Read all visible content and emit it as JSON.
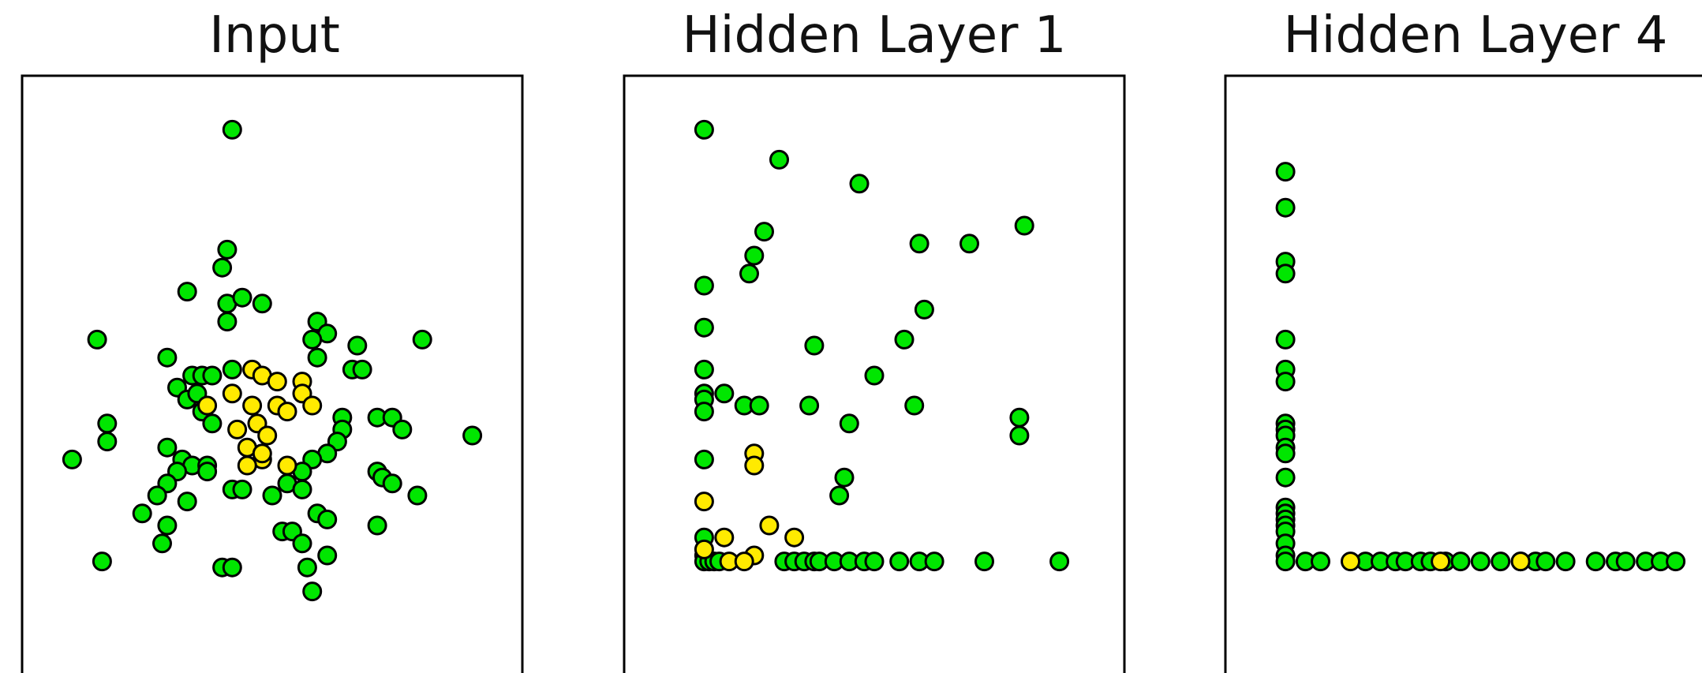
{
  "colors": {
    "class_a": "#00e600",
    "class_b": "#ffea00",
    "outline": "#000000"
  },
  "chart_data": [
    {
      "type": "scatter",
      "title": "Input",
      "xlabel": "",
      "ylabel": "",
      "xlim": [
        0,
        100
      ],
      "ylim": [
        0,
        100
      ],
      "grid": false,
      "series": [
        {
          "color": "#00e600",
          "points": [
            [
              42,
              91
            ],
            [
              41,
              71
            ],
            [
              40,
              68
            ],
            [
              33,
              64
            ],
            [
              41,
              62
            ],
            [
              44,
              63
            ],
            [
              48,
              62
            ],
            [
              41,
              59
            ],
            [
              15,
              56
            ],
            [
              29,
              53
            ],
            [
              59,
              59
            ],
            [
              61,
              57
            ],
            [
              58,
              56
            ],
            [
              59,
              53
            ],
            [
              67,
              55
            ],
            [
              66,
              51
            ],
            [
              68,
              51
            ],
            [
              80,
              56
            ],
            [
              34,
              50
            ],
            [
              36,
              50
            ],
            [
              38,
              50
            ],
            [
              42,
              51
            ],
            [
              31,
              48
            ],
            [
              33,
              46
            ],
            [
              36,
              44
            ],
            [
              38,
              42
            ],
            [
              35,
              47
            ],
            [
              17,
              42
            ],
            [
              17,
              39
            ],
            [
              29,
              38
            ],
            [
              64,
              43
            ],
            [
              64,
              41
            ],
            [
              63,
              39
            ],
            [
              61,
              37
            ],
            [
              58,
              36
            ],
            [
              56,
              34
            ],
            [
              71,
              43
            ],
            [
              74,
              43
            ],
            [
              76,
              41
            ],
            [
              10,
              36
            ],
            [
              32,
              36
            ],
            [
              34,
              35
            ],
            [
              37,
              35
            ],
            [
              37,
              34
            ],
            [
              31,
              34
            ],
            [
              29,
              32
            ],
            [
              27,
              30
            ],
            [
              24,
              27
            ],
            [
              33,
              29
            ],
            [
              29,
              25
            ],
            [
              28,
              22
            ],
            [
              42,
              31
            ],
            [
              44,
              31
            ],
            [
              50,
              30
            ],
            [
              53,
              32
            ],
            [
              56,
              31
            ],
            [
              59,
              27
            ],
            [
              52,
              24
            ],
            [
              54,
              24
            ],
            [
              56,
              22
            ],
            [
              61,
              26
            ],
            [
              71,
              34
            ],
            [
              72,
              33
            ],
            [
              74,
              32
            ],
            [
              79,
              30
            ],
            [
              71,
              25
            ],
            [
              61,
              20
            ],
            [
              16,
              19
            ],
            [
              40,
              18
            ],
            [
              42,
              18
            ],
            [
              57,
              18
            ],
            [
              58,
              14
            ],
            [
              90,
              40
            ]
          ]
        },
        {
          "color": "#ffea00",
          "points": [
            [
              46,
              51
            ],
            [
              48,
              50
            ],
            [
              51,
              49
            ],
            [
              56,
              49
            ],
            [
              56,
              47
            ],
            [
              42,
              47
            ],
            [
              46,
              45
            ],
            [
              51,
              45
            ],
            [
              53,
              44
            ],
            [
              58,
              45
            ],
            [
              37,
              45
            ],
            [
              47,
              42
            ],
            [
              49,
              40
            ],
            [
              43,
              41
            ],
            [
              45,
              38
            ],
            [
              48,
              36
            ],
            [
              45,
              35
            ],
            [
              53,
              35
            ],
            [
              48,
              37
            ]
          ]
        }
      ]
    },
    {
      "type": "scatter",
      "title": "Hidden Layer 1",
      "xlabel": "",
      "ylabel": "",
      "xlim": [
        0,
        100
      ],
      "ylim": [
        0,
        100
      ],
      "grid": false,
      "series": [
        {
          "color": "#00e600",
          "points": [
            [
              16,
              91
            ],
            [
              31,
              86
            ],
            [
              47,
              82
            ],
            [
              80,
              75
            ],
            [
              28,
              74
            ],
            [
              26,
              70
            ],
            [
              59,
              72
            ],
            [
              69,
              72
            ],
            [
              25,
              67
            ],
            [
              16,
              65
            ],
            [
              16,
              58
            ],
            [
              60,
              61
            ],
            [
              16,
              51
            ],
            [
              38,
              55
            ],
            [
              56,
              56
            ],
            [
              50,
              50
            ],
            [
              16,
              47
            ],
            [
              16,
              46
            ],
            [
              16,
              44
            ],
            [
              20,
              47
            ],
            [
              24,
              45
            ],
            [
              27,
              45
            ],
            [
              37,
              45
            ],
            [
              45,
              42
            ],
            [
              58,
              45
            ],
            [
              79,
              43
            ],
            [
              79,
              40
            ],
            [
              16,
              36
            ],
            [
              44,
              33
            ],
            [
              43,
              30
            ],
            [
              16,
              23
            ],
            [
              16,
              20
            ],
            [
              16,
              19
            ],
            [
              17,
              19
            ],
            [
              18,
              19
            ],
            [
              19,
              19
            ],
            [
              32,
              19
            ],
            [
              34,
              19
            ],
            [
              36,
              19
            ],
            [
              38,
              19
            ],
            [
              39,
              19
            ],
            [
              42,
              19
            ],
            [
              45,
              19
            ],
            [
              48,
              19
            ],
            [
              50,
              19
            ],
            [
              55,
              19
            ],
            [
              59,
              19
            ],
            [
              62,
              19
            ],
            [
              72,
              19
            ],
            [
              87,
              19
            ]
          ]
        },
        {
          "color": "#ffea00",
          "points": [
            [
              26,
              37
            ],
            [
              26,
              35
            ],
            [
              16,
              29
            ],
            [
              20,
              23
            ],
            [
              29,
              25
            ],
            [
              34,
              23
            ],
            [
              26,
              20
            ],
            [
              16,
              21
            ],
            [
              21,
              19
            ],
            [
              24,
              19
            ]
          ]
        }
      ]
    },
    {
      "type": "scatter",
      "title": "Hidden Layer 4",
      "xlabel": "",
      "ylabel": "",
      "xlim": [
        0,
        100
      ],
      "ylim": [
        0,
        100
      ],
      "grid": false,
      "series": [
        {
          "color": "#00e600",
          "points": [
            [
              12,
              84
            ],
            [
              12,
              78
            ],
            [
              12,
              69
            ],
            [
              12,
              67
            ],
            [
              12,
              56
            ],
            [
              12,
              51
            ],
            [
              12,
              49
            ],
            [
              12,
              42
            ],
            [
              12,
              41
            ],
            [
              12,
              40
            ],
            [
              12,
              38
            ],
            [
              12,
              37
            ],
            [
              12,
              33
            ],
            [
              12,
              28
            ],
            [
              12,
              27
            ],
            [
              12,
              26
            ],
            [
              12,
              25
            ],
            [
              12,
              24
            ],
            [
              12,
              22
            ],
            [
              12,
              20
            ],
            [
              12,
              19
            ],
            [
              16,
              19
            ],
            [
              19,
              19
            ],
            [
              28,
              19
            ],
            [
              31,
              19
            ],
            [
              34,
              19
            ],
            [
              36,
              19
            ],
            [
              39,
              19
            ],
            [
              41,
              19
            ],
            [
              44,
              19
            ],
            [
              47,
              19
            ],
            [
              51,
              19
            ],
            [
              55,
              19
            ],
            [
              59,
              19
            ],
            [
              62,
              19
            ],
            [
              64,
              19
            ],
            [
              68,
              19
            ],
            [
              74,
              19
            ],
            [
              78,
              19
            ],
            [
              80,
              19
            ],
            [
              84,
              19
            ],
            [
              87,
              19
            ],
            [
              90,
              19
            ]
          ]
        },
        {
          "color": "#ffea00",
          "points": [
            [
              25,
              19
            ],
            [
              43,
              19
            ],
            [
              59,
              19
            ]
          ]
        }
      ]
    }
  ]
}
